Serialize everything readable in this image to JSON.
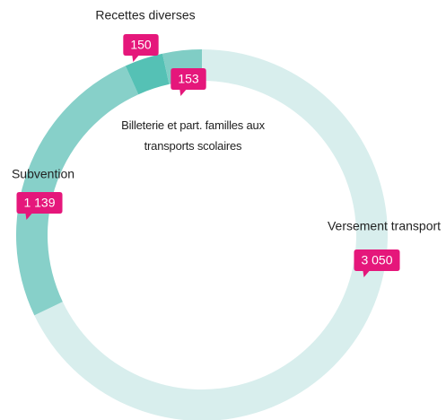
{
  "chart_data": {
    "type": "donut",
    "categories": [
      "Versement transport",
      "Subvention",
      "Recettes diverses",
      "Billeterie et part. familles aux transports scolaires"
    ],
    "values": [
      3050,
      1139,
      150,
      153
    ],
    "value_labels": [
      "3 050",
      "1 139",
      "150",
      "153"
    ],
    "colors": [
      "#d8eeed",
      "#87d0c9",
      "#55c1b5",
      "#80cdc5"
    ],
    "label_color": "#e5177b"
  }
}
